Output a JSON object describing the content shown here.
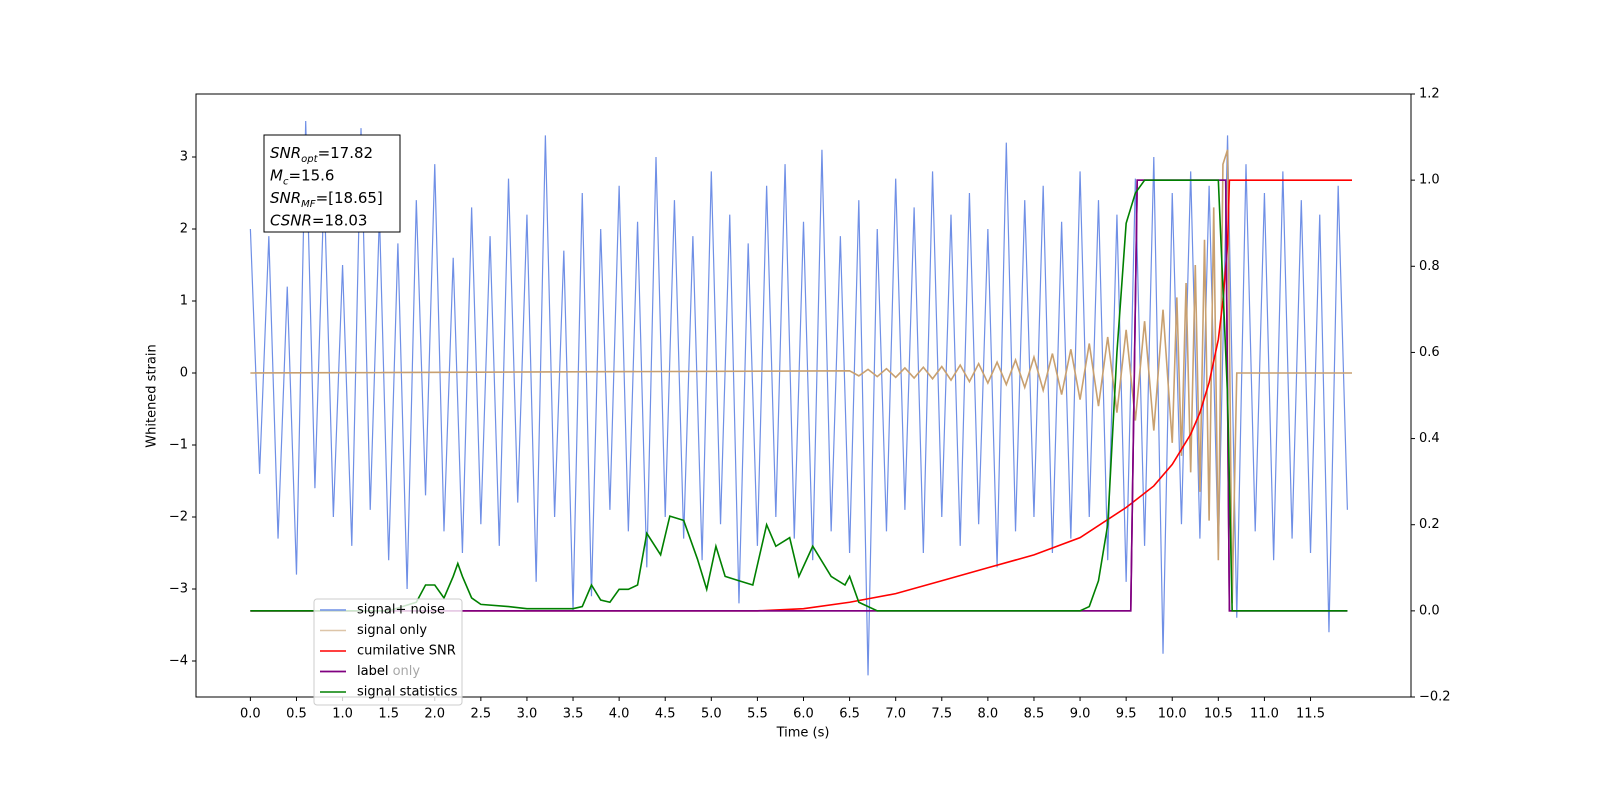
{
  "chart_data": {
    "type": "line",
    "x_label": "Time (s)",
    "y_label": "Whitened strain",
    "xlim": [
      -0.59,
      12.59
    ],
    "ylim": [
      -4.5,
      3.875
    ],
    "y2lim": [
      -0.2,
      1.2
    ],
    "xticks": [
      {
        "value": 0,
        "label": "0.0"
      },
      0.5,
      {
        "value": 1,
        "label": "1.0"
      },
      1.5,
      {
        "value": 2,
        "label": "2.0"
      },
      2.5,
      {
        "value": 3,
        "label": "3.0"
      },
      3.5,
      {
        "value": 4,
        "label": "4.0"
      },
      4.5,
      {
        "value": 5,
        "label": "5.0"
      },
      5.5,
      {
        "value": 6,
        "label": "6.0"
      },
      6.5,
      {
        "value": 7,
        "label": "7.0"
      },
      7.5,
      {
        "value": 8,
        "label": "8.0"
      },
      8.5,
      {
        "value": 9,
        "label": "9.0"
      },
      9.5,
      {
        "value": 10,
        "label": "10.0"
      },
      10.5,
      {
        "value": 11,
        "label": "11.0"
      },
      11.5
    ],
    "yticks": [
      {
        "value": -4,
        "label": "−4"
      },
      {
        "value": -3,
        "label": "−3"
      },
      {
        "value": -2,
        "label": "−2"
      },
      {
        "value": -1,
        "label": "−1"
      },
      0,
      1,
      2,
      3
    ],
    "y2ticks": [
      {
        "value": -0.2,
        "label": "−0.2"
      },
      {
        "value": 0,
        "label": "0.0"
      },
      0.2,
      0.4,
      0.6,
      0.8,
      {
        "value": 1,
        "label": "1.0"
      },
      1.2
    ],
    "annotation": [
      {
        "base": "SNR",
        "sub": "opt",
        "rest": "=17.82"
      },
      {
        "base": "M",
        "sub": "c",
        "rest": "=15.6"
      },
      {
        "base": "SNR",
        "sub": "MF",
        "rest": "=[18.65]"
      },
      {
        "base": "CSNR",
        "rest": "=18.03"
      }
    ],
    "series": [
      {
        "name": "signal+ noise",
        "color": "#6f8fe6",
        "axis": "y",
        "x": [
          0,
          0.1,
          0.2,
          0.3,
          0.4,
          0.5,
          0.6,
          0.7,
          0.8,
          0.9,
          1,
          1.1,
          1.2,
          1.3,
          1.4,
          1.5,
          1.6,
          1.7,
          1.8,
          1.9,
          2,
          2.1,
          2.2,
          2.3,
          2.4,
          2.5,
          2.6,
          2.7,
          2.8,
          2.9,
          3,
          3.1,
          3.2,
          3.3,
          3.4,
          3.5,
          3.6,
          3.7,
          3.8,
          3.9,
          4,
          4.1,
          4.2,
          4.3,
          4.4,
          4.5,
          4.6,
          4.7,
          4.8,
          4.9,
          5,
          5.1,
          5.2,
          5.3,
          5.4,
          5.5,
          5.6,
          5.7,
          5.8,
          5.9,
          6,
          6.1,
          6.2,
          6.3,
          6.4,
          6.5,
          6.6,
          6.7,
          6.8,
          6.9,
          7,
          7.1,
          7.2,
          7.3,
          7.4,
          7.5,
          7.6,
          7.7,
          7.8,
          7.9,
          8,
          8.1,
          8.2,
          8.3,
          8.4,
          8.5,
          8.6,
          8.7,
          8.8,
          8.9,
          9,
          9.1,
          9.2,
          9.3,
          9.4,
          9.5,
          9.6,
          9.7,
          9.8,
          9.9,
          10,
          10.1,
          10.2,
          10.3,
          10.4,
          10.5,
          10.6,
          10.7,
          10.8,
          10.9,
          11,
          11.1,
          11.2,
          11.3,
          11.4,
          11.5,
          11.6,
          11.7,
          11.8,
          11.9
        ],
        "values": [
          2.0,
          -1.4,
          1.9,
          -2.3,
          1.2,
          -2.8,
          3.5,
          -1.6,
          2.6,
          -2.0,
          1.5,
          -2.4,
          3.4,
          -1.9,
          2.2,
          -2.6,
          1.8,
          -3.0,
          2.4,
          -1.7,
          2.9,
          -2.2,
          1.6,
          -2.5,
          2.3,
          -2.1,
          1.9,
          -2.4,
          2.7,
          -1.8,
          2.2,
          -2.9,
          3.3,
          -2.0,
          1.7,
          -3.3,
          2.5,
          -3.1,
          2.0,
          -1.9,
          2.6,
          -2.2,
          2.1,
          -2.7,
          3.0,
          -2.0,
          2.4,
          -2.3,
          1.9,
          -2.6,
          2.8,
          -2.1,
          2.2,
          -3.2,
          1.8,
          -2.4,
          2.6,
          -2.0,
          2.9,
          -2.3,
          2.1,
          -2.6,
          3.1,
          -2.2,
          1.9,
          -2.5,
          2.4,
          -4.2,
          2.0,
          -2.2,
          2.7,
          -1.9,
          2.3,
          -2.5,
          2.8,
          -2.0,
          2.2,
          -2.4,
          2.5,
          -2.1,
          2.0,
          -2.7,
          3.2,
          -2.2,
          2.4,
          -2.0,
          2.6,
          -2.5,
          2.1,
          -2.3,
          2.8,
          -2.0,
          2.4,
          -2.6,
          2.2,
          -2.9,
          2.7,
          -2.4,
          3.0,
          -3.9,
          2.5,
          -2.1,
          2.8,
          -2.3,
          2.6,
          -2.5,
          3.3,
          -3.4,
          2.9,
          -2.2,
          2.5,
          -2.6,
          2.8,
          -2.3,
          2.4,
          -2.5,
          2.2,
          -3.6,
          2.6,
          -1.9
        ]
      },
      {
        "name": "signal only",
        "color": "#c8a070",
        "axis": "y",
        "x": [
          0,
          6.5,
          6.6,
          6.7,
          6.8,
          6.9,
          7,
          7.1,
          7.2,
          7.3,
          7.4,
          7.5,
          7.6,
          7.7,
          7.8,
          7.9,
          8,
          8.1,
          8.2,
          8.3,
          8.4,
          8.5,
          8.6,
          8.7,
          8.8,
          8.9,
          9,
          9.1,
          9.2,
          9.3,
          9.4,
          9.5,
          9.6,
          9.7,
          9.8,
          9.9,
          10,
          10.05,
          10.1,
          10.15,
          10.2,
          10.25,
          10.3,
          10.35,
          10.4,
          10.45,
          10.5,
          10.55,
          10.6,
          10.65,
          10.7,
          11.95
        ],
        "values": [
          0,
          0.03,
          -0.04,
          0.05,
          -0.05,
          0.06,
          -0.06,
          0.07,
          -0.07,
          0.08,
          -0.08,
          0.09,
          -0.1,
          0.11,
          -0.12,
          0.13,
          -0.14,
          0.15,
          -0.16,
          0.18,
          -0.2,
          0.22,
          -0.24,
          0.27,
          -0.3,
          0.33,
          -0.37,
          0.41,
          -0.46,
          0.5,
          -0.55,
          0.6,
          -0.66,
          0.72,
          -0.8,
          0.88,
          -0.97,
          1.05,
          -1.15,
          1.25,
          -1.38,
          1.5,
          -1.65,
          1.85,
          -2.05,
          2.3,
          -2.6,
          2.9,
          3.1,
          -3.2,
          0,
          0
        ]
      },
      {
        "name": "cumilative SNR",
        "color": "#ff0000",
        "axis": "y2",
        "x": [
          0,
          5.5,
          6.0,
          6.5,
          7.0,
          7.5,
          8.0,
          8.5,
          9.0,
          9.5,
          9.8,
          10.0,
          10.2,
          10.3,
          10.4,
          10.5,
          10.55,
          10.6,
          10.62,
          11.95
        ],
        "values": [
          0,
          0,
          0.005,
          0.02,
          0.04,
          0.07,
          0.1,
          0.13,
          0.17,
          0.24,
          0.29,
          0.34,
          0.41,
          0.46,
          0.53,
          0.63,
          0.72,
          0.85,
          1.0,
          1.0
        ]
      },
      {
        "name": "label",
        "color": "#800080",
        "axis": "y2",
        "x": [
          0,
          9.55,
          9.62,
          10.58,
          10.62,
          11.9
        ],
        "values": [
          0,
          0,
          1,
          1,
          0,
          0
        ]
      },
      {
        "name": "label only",
        "color": "#800080",
        "axis": "y2",
        "x": [
          0,
          9.55,
          9.62,
          10.58,
          10.62,
          11.9
        ],
        "values": [
          0,
          0,
          1,
          1,
          0,
          0
        ]
      },
      {
        "name": "signal statistics",
        "color": "#008000",
        "axis": "y2",
        "x": [
          0,
          1.5,
          1.8,
          1.9,
          2.0,
          2.1,
          2.2,
          2.25,
          2.3,
          2.4,
          2.5,
          2.8,
          3.0,
          3.5,
          3.6,
          3.7,
          3.8,
          3.9,
          4.0,
          4.1,
          4.2,
          4.3,
          4.45,
          4.55,
          4.7,
          4.85,
          4.95,
          5.05,
          5.15,
          5.3,
          5.45,
          5.6,
          5.7,
          5.85,
          5.95,
          6.1,
          6.3,
          6.45,
          6.5,
          6.6,
          6.8,
          9.0,
          9.1,
          9.2,
          9.3,
          9.4,
          9.5,
          9.6,
          9.7,
          10.5,
          10.6,
          10.65,
          11.9
        ],
        "values": [
          0,
          0,
          0.02,
          0.06,
          0.06,
          0.03,
          0.08,
          0.11,
          0.08,
          0.03,
          0.015,
          0.01,
          0.005,
          0.005,
          0.01,
          0.06,
          0.025,
          0.02,
          0.05,
          0.05,
          0.06,
          0.18,
          0.13,
          0.22,
          0.21,
          0.12,
          0.05,
          0.15,
          0.08,
          0.07,
          0.06,
          0.2,
          0.15,
          0.17,
          0.08,
          0.15,
          0.08,
          0.06,
          0.08,
          0.02,
          0,
          0,
          0.01,
          0.07,
          0.2,
          0.6,
          0.9,
          0.97,
          1.0,
          1.0,
          0.5,
          0,
          0
        ]
      }
    ],
    "legend": "lower left"
  }
}
